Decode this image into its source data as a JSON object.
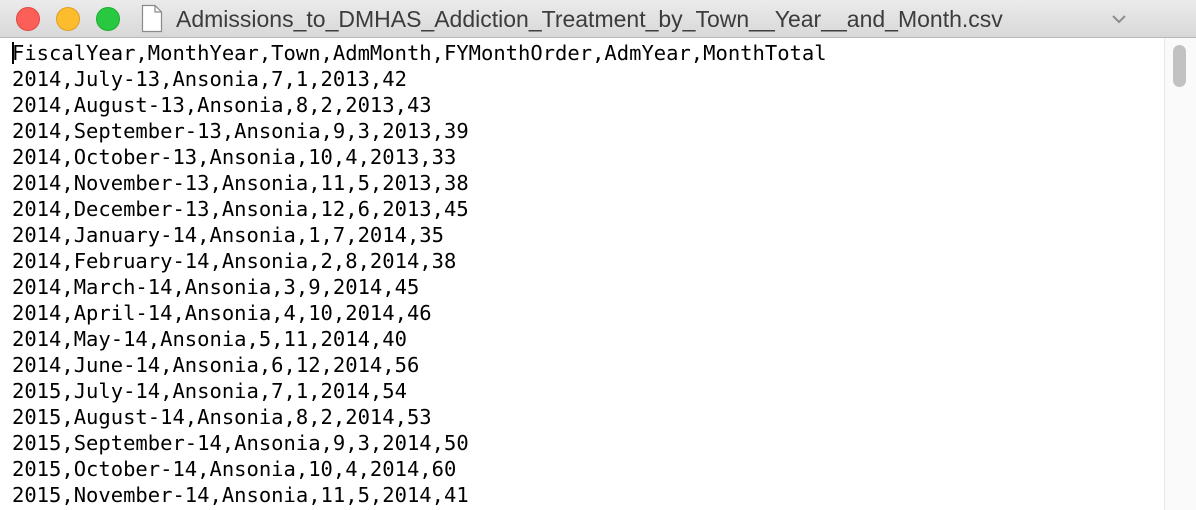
{
  "window": {
    "title": "Admissions_to_DMHAS_Addiction_Treatment_by_Town__Year__and_Month.csv",
    "icons": {
      "close": "close-button",
      "minimize": "minimize-button",
      "zoom": "zoom-button",
      "document": "document-icon",
      "title_menu": "chevron-down-icon"
    },
    "colors": {
      "close": "#fc5f57",
      "minimize": "#fdbc2e",
      "zoom": "#28c840"
    }
  },
  "file": {
    "lines": [
      "FiscalYear,MonthYear,Town,AdmMonth,FYMonthOrder,AdmYear,MonthTotal",
      "2014,July-13,Ansonia,7,1,2013,42",
      "2014,August-13,Ansonia,8,2,2013,43",
      "2014,September-13,Ansonia,9,3,2013,39",
      "2014,October-13,Ansonia,10,4,2013,33",
      "2014,November-13,Ansonia,11,5,2013,38",
      "2014,December-13,Ansonia,12,6,2013,45",
      "2014,January-14,Ansonia,1,7,2014,35",
      "2014,February-14,Ansonia,2,8,2014,38",
      "2014,March-14,Ansonia,3,9,2014,45",
      "2014,April-14,Ansonia,4,10,2014,46",
      "2014,May-14,Ansonia,5,11,2014,40",
      "2014,June-14,Ansonia,6,12,2014,56",
      "2015,July-14,Ansonia,7,1,2014,54",
      "2015,August-14,Ansonia,8,2,2014,53",
      "2015,September-14,Ansonia,9,3,2014,50",
      "2015,October-14,Ansonia,10,4,2014,60",
      "2015,November-14,Ansonia,11,5,2014,41"
    ]
  }
}
